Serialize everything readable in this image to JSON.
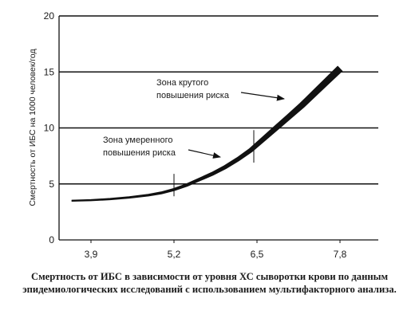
{
  "chart_data": {
    "type": "line",
    "ylabel": "Смертность от ИБС на 1000 человек/год",
    "xlabel": "",
    "xlim": [
      3.4,
      8.4
    ],
    "ylim": [
      0,
      20
    ],
    "x_ticks": [
      "3,9",
      "5,2",
      "6,5",
      "7,8"
    ],
    "x_tick_values": [
      3.9,
      5.2,
      6.5,
      7.8
    ],
    "y_ticks": [
      "0",
      "5",
      "10",
      "15",
      "20"
    ],
    "y_tick_values": [
      0,
      5,
      10,
      15,
      20
    ],
    "grid": "horizontal",
    "series": [
      {
        "x": [
          3.6,
          3.9,
          4.2,
          4.5,
          4.8,
          5.0,
          5.2,
          5.4,
          5.6,
          5.8,
          6.0,
          6.2,
          6.4,
          6.6,
          6.8,
          7.0,
          7.2,
          7.4,
          7.6,
          7.8
        ],
        "y": [
          3.5,
          3.55,
          3.65,
          3.8,
          4.0,
          4.2,
          4.5,
          4.9,
          5.4,
          5.9,
          6.5,
          7.2,
          8.0,
          9.0,
          10.0,
          11.0,
          12.0,
          13.1,
          14.2,
          15.3
        ]
      }
    ],
    "markers": [
      {
        "x": 5.2,
        "y_from": 3.9,
        "y_to": 5.9
      },
      {
        "x": 6.45,
        "y_from": 6.9,
        "y_to": 9.8
      }
    ],
    "annotations": [
      {
        "lines": [
          "Зона крутого",
          "повышения риска"
        ],
        "arrow_to": {
          "x": 7.0,
          "y": 12.6
        }
      },
      {
        "lines": [
          "Зона умеренного",
          "повышения риска"
        ],
        "arrow_to": {
          "x": 6.0,
          "y": 7.4
        }
      }
    ]
  },
  "caption": "Смертность от ИБС в зависимости от уровня ХС сыворотки крови по данным эпидемиологических исследований с использованием мультифакторного анализа."
}
